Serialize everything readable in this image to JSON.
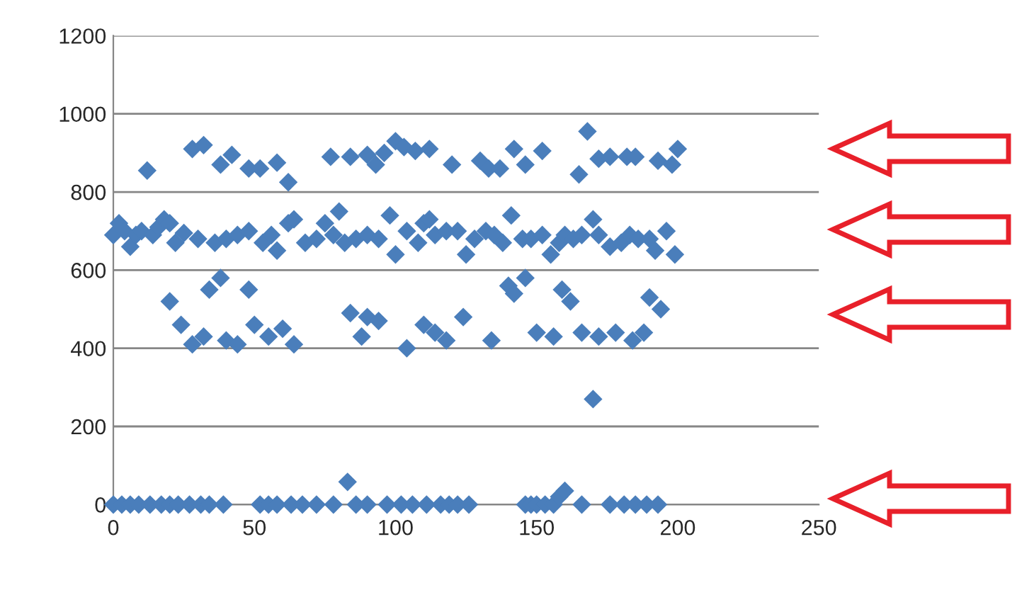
{
  "chart_data": {
    "type": "scatter",
    "series": [
      {
        "color": "#4a7ebb",
        "x": [
          12,
          28,
          32,
          38,
          42,
          48,
          52,
          58,
          62,
          77,
          84,
          90,
          93,
          96,
          100,
          103,
          107,
          112,
          120,
          130,
          133,
          137,
          142,
          146,
          152,
          165,
          168,
          172,
          176,
          182,
          185,
          193,
          198,
          200,
          0,
          2,
          4,
          6,
          8,
          10,
          14,
          16,
          18,
          20,
          22,
          25,
          30,
          36,
          40,
          44,
          48,
          53,
          56,
          58,
          62,
          64,
          68,
          72,
          75,
          78,
          80,
          82,
          86,
          90,
          94,
          98,
          100,
          104,
          108,
          110,
          112,
          114,
          118,
          122,
          125,
          128,
          132,
          135,
          138,
          141,
          145,
          148,
          152,
          155,
          158,
          160,
          163,
          166,
          170,
          172,
          176,
          180,
          183,
          186,
          190,
          192,
          196,
          199,
          20,
          24,
          28,
          32,
          34,
          38,
          40,
          44,
          48,
          50,
          55,
          60,
          64,
          84,
          88,
          90,
          94,
          104,
          110,
          114,
          118,
          124,
          134,
          140,
          142,
          146,
          150,
          156,
          159,
          162,
          166,
          172,
          178,
          184,
          188,
          190,
          194,
          170,
          0,
          3,
          6,
          9,
          13,
          17,
          20,
          23,
          27,
          31,
          34,
          39,
          52,
          55,
          58,
          63,
          67,
          72,
          78,
          83,
          86,
          90,
          97,
          102,
          106,
          111,
          116,
          119,
          122,
          126,
          146,
          148,
          150,
          153,
          156,
          158,
          160,
          166,
          176,
          181,
          185,
          189,
          193
        ],
        "values": [
          855,
          910,
          920,
          870,
          895,
          860,
          860,
          875,
          825,
          890,
          890,
          895,
          870,
          900,
          930,
          915,
          905,
          910,
          870,
          880,
          860,
          860,
          910,
          870,
          905,
          845,
          955,
          885,
          890,
          890,
          890,
          880,
          870,
          910,
          690,
          720,
          700,
          660,
          690,
          700,
          690,
          710,
          730,
          720,
          670,
          695,
          680,
          670,
          680,
          690,
          700,
          670,
          690,
          650,
          720,
          730,
          670,
          680,
          720,
          690,
          750,
          670,
          680,
          690,
          680,
          740,
          640,
          700,
          670,
          720,
          730,
          690,
          700,
          700,
          640,
          680,
          700,
          690,
          670,
          740,
          680,
          680,
          690,
          640,
          670,
          690,
          680,
          690,
          730,
          690,
          660,
          670,
          690,
          680,
          680,
          650,
          700,
          640,
          520,
          460,
          410,
          430,
          550,
          580,
          420,
          410,
          550,
          460,
          430,
          450,
          410,
          490,
          430,
          480,
          470,
          400,
          460,
          440,
          420,
          480,
          420,
          560,
          540,
          580,
          440,
          430,
          550,
          520,
          440,
          430,
          440,
          420,
          440,
          530,
          500,
          270,
          0,
          0,
          0,
          0,
          0,
          0,
          0,
          0,
          0,
          0,
          0,
          0,
          0,
          0,
          0,
          0,
          0,
          0,
          0,
          58,
          0,
          0,
          0,
          0,
          0,
          0,
          0,
          0,
          0,
          0,
          0,
          0,
          0,
          0,
          0,
          20,
          35,
          0,
          0,
          0,
          0,
          0,
          0
        ]
      }
    ],
    "xlim": [
      0,
      250
    ],
    "xticks": [
      0,
      50,
      100,
      150,
      200,
      250
    ],
    "ylim": [
      0,
      1200
    ],
    "yticks": [
      0,
      200,
      400,
      600,
      800,
      1000,
      1200
    ],
    "grid": "y",
    "marker": "diamond",
    "legend": false
  }
}
